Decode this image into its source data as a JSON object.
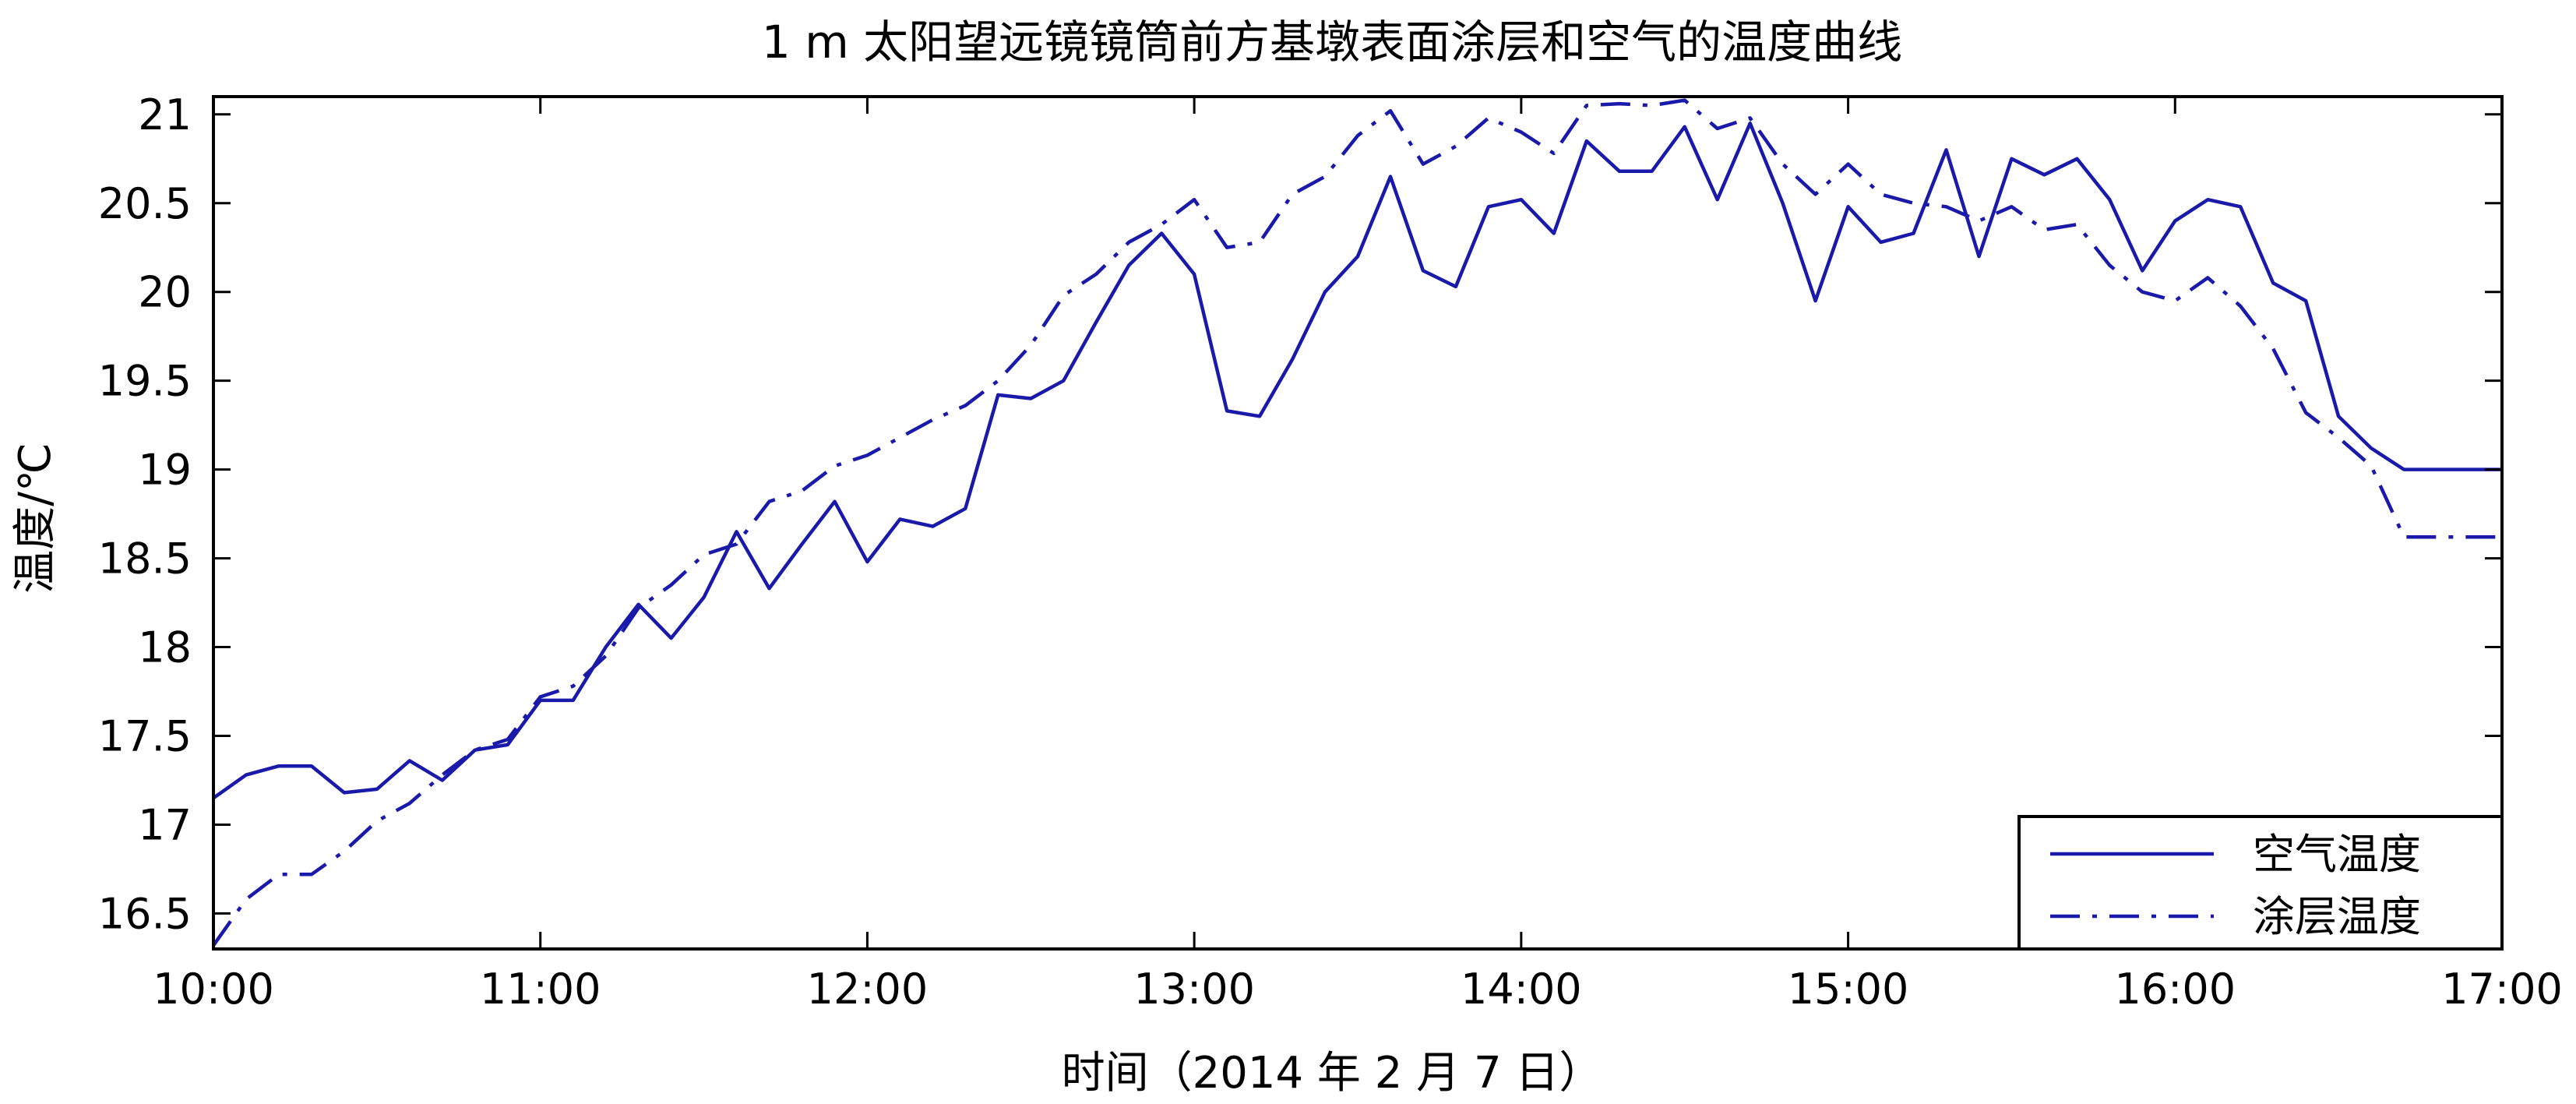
{
  "chart_data": {
    "type": "line",
    "title": "1 m 太阳望远镜镜筒前方基墩表面涂层和空气的温度曲线",
    "xlabel": "时间（2014 年 2 月 7 日）",
    "ylabel": "温度/℃",
    "xlim": [
      "10:00",
      "17:00"
    ],
    "ylim": [
      16.3,
      21.1
    ],
    "x_ticks": [
      "10:00",
      "11:00",
      "12:00",
      "13:00",
      "14:00",
      "15:00",
      "16:00",
      "17:00"
    ],
    "y_ticks": [
      "16.5",
      "17",
      "17.5",
      "18",
      "18.5",
      "19",
      "19.5",
      "20",
      "20.5",
      "21"
    ],
    "grid": false,
    "legend_position": "bottom-right",
    "series": [
      {
        "name": "空气温度",
        "style": "solid",
        "color": "#1a1aaa",
        "x": [
          "10:00",
          "10:06",
          "10:12",
          "10:18",
          "10:24",
          "10:30",
          "10:36",
          "10:42",
          "10:48",
          "10:54",
          "11:00",
          "11:06",
          "11:12",
          "11:18",
          "11:24",
          "11:30",
          "11:36",
          "11:42",
          "11:48",
          "11:54",
          "12:00",
          "12:06",
          "12:12",
          "12:18",
          "12:24",
          "12:30",
          "12:36",
          "12:42",
          "12:48",
          "12:54",
          "13:00",
          "13:06",
          "13:12",
          "13:18",
          "13:24",
          "13:30",
          "13:36",
          "13:42",
          "13:48",
          "13:54",
          "14:00",
          "14:06",
          "14:12",
          "14:18",
          "14:24",
          "14:30",
          "14:36",
          "14:42",
          "14:48",
          "14:54",
          "15:00",
          "15:06",
          "15:12",
          "15:18",
          "15:24",
          "15:30",
          "15:36",
          "15:42",
          "15:48",
          "15:54",
          "16:00",
          "16:06",
          "16:12",
          "16:18",
          "16:24",
          "16:30",
          "16:36",
          "16:42",
          "16:48",
          "16:54",
          "17:00"
        ],
        "values": [
          17.15,
          17.28,
          17.33,
          17.33,
          17.18,
          17.2,
          17.36,
          17.25,
          17.42,
          17.45,
          17.7,
          17.7,
          18.0,
          18.24,
          18.05,
          18.28,
          18.65,
          18.33,
          18.58,
          18.82,
          18.48,
          18.72,
          18.68,
          18.78,
          19.42,
          19.4,
          19.5,
          19.83,
          20.15,
          20.33,
          20.1,
          19.33,
          19.3,
          19.62,
          20.0,
          20.2,
          20.65,
          20.12,
          20.03,
          20.48,
          20.52,
          20.33,
          20.85,
          20.68,
          20.68,
          20.93,
          20.52,
          20.95,
          20.5,
          19.95,
          20.48,
          20.28,
          20.33,
          20.8,
          20.2,
          20.75,
          20.66,
          20.75,
          20.52,
          20.12,
          20.4,
          20.52,
          20.48,
          20.05,
          19.95,
          19.3,
          19.12,
          19.0,
          19.0,
          19.0,
          19.0
        ]
      },
      {
        "name": "涂层温度",
        "style": "dashdot",
        "color": "#1a1aaa",
        "x": [
          "10:00",
          "10:06",
          "10:12",
          "10:18",
          "10:24",
          "10:30",
          "10:36",
          "10:42",
          "10:48",
          "10:54",
          "11:00",
          "11:06",
          "11:12",
          "11:18",
          "11:24",
          "11:30",
          "11:36",
          "11:42",
          "11:48",
          "11:54",
          "12:00",
          "12:06",
          "12:12",
          "12:18",
          "12:24",
          "12:30",
          "12:36",
          "12:42",
          "12:48",
          "12:54",
          "13:00",
          "13:06",
          "13:12",
          "13:18",
          "13:24",
          "13:30",
          "13:36",
          "13:42",
          "13:48",
          "13:54",
          "14:00",
          "14:06",
          "14:12",
          "14:18",
          "14:24",
          "14:30",
          "14:36",
          "14:42",
          "14:48",
          "14:54",
          "15:00",
          "15:06",
          "15:12",
          "15:18",
          "15:24",
          "15:30",
          "15:36",
          "15:42",
          "15:48",
          "15:54",
          "16:00",
          "16:06",
          "16:12",
          "16:18",
          "16:24",
          "16:30",
          "16:36",
          "16:42",
          "16:48",
          "16:54",
          "17:00"
        ],
        "values": [
          16.32,
          16.58,
          16.72,
          16.72,
          16.85,
          17.02,
          17.12,
          17.28,
          17.42,
          17.48,
          17.72,
          17.78,
          17.95,
          18.22,
          18.35,
          18.52,
          18.58,
          18.82,
          18.88,
          19.02,
          19.08,
          19.18,
          19.28,
          19.36,
          19.5,
          19.7,
          19.98,
          20.1,
          20.28,
          20.38,
          20.52,
          20.25,
          20.28,
          20.55,
          20.65,
          20.88,
          21.02,
          20.72,
          20.82,
          20.98,
          20.9,
          20.78,
          21.05,
          21.06,
          21.05,
          21.08,
          20.92,
          20.98,
          20.72,
          20.55,
          20.72,
          20.55,
          20.5,
          20.48,
          20.4,
          20.48,
          20.35,
          20.38,
          20.15,
          20.0,
          19.95,
          20.08,
          19.92,
          19.68,
          19.32,
          19.18,
          19.02,
          18.62,
          18.62,
          18.62,
          18.62
        ]
      }
    ]
  }
}
